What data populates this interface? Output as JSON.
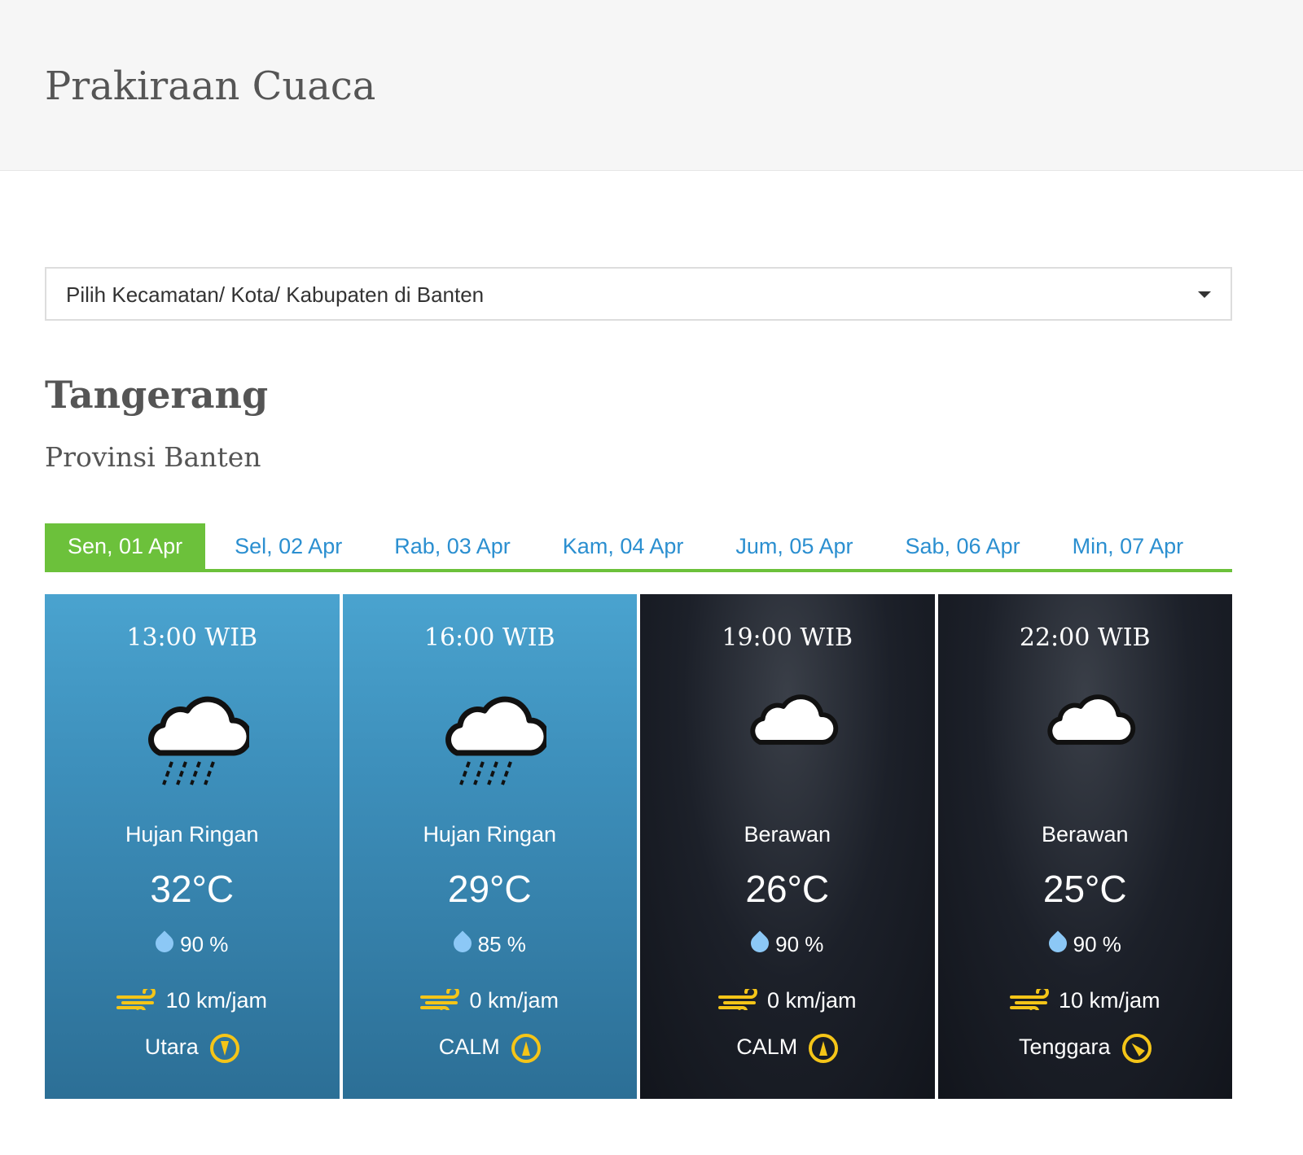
{
  "header": {
    "title": "Prakiraan Cuaca"
  },
  "location_select": {
    "placeholder": "Pilih Kecamatan/ Kota/ Kabupaten di Banten"
  },
  "location": {
    "city": "Tangerang",
    "province": "Provinsi Banten"
  },
  "tabs": [
    {
      "label": "Sen, 01 Apr",
      "active": true
    },
    {
      "label": "Sel, 02 Apr"
    },
    {
      "label": "Rab, 03 Apr"
    },
    {
      "label": "Kam, 04 Apr"
    },
    {
      "label": "Jum, 05 Apr"
    },
    {
      "label": "Sab, 06 Apr"
    },
    {
      "label": "Min, 07 Apr"
    }
  ],
  "colors": {
    "accent": "#6cc13b",
    "link": "#2b8fd0",
    "wind_icon": "#f5c518"
  },
  "forecasts": [
    {
      "time": "13:00 WIB",
      "icon": "cloud-rain-icon",
      "condition": "Hujan Ringan",
      "temp": "32°C",
      "humidity": "90 %",
      "wind_speed": "10 km/jam",
      "wind_dir": "Utara",
      "theme": "day"
    },
    {
      "time": "16:00 WIB",
      "icon": "cloud-rain-icon",
      "condition": "Hujan Ringan",
      "temp": "29°C",
      "humidity": "85 %",
      "wind_speed": "0 km/jam",
      "wind_dir": "CALM",
      "theme": "day"
    },
    {
      "time": "19:00 WIB",
      "icon": "cloud-icon",
      "condition": "Berawan",
      "temp": "26°C",
      "humidity": "90 %",
      "wind_speed": "0 km/jam",
      "wind_dir": "CALM",
      "theme": "night"
    },
    {
      "time": "22:00 WIB",
      "icon": "cloud-icon",
      "condition": "Berawan",
      "temp": "25°C",
      "humidity": "90 %",
      "wind_speed": "10 km/jam",
      "wind_dir": "Tenggara",
      "theme": "night"
    }
  ]
}
